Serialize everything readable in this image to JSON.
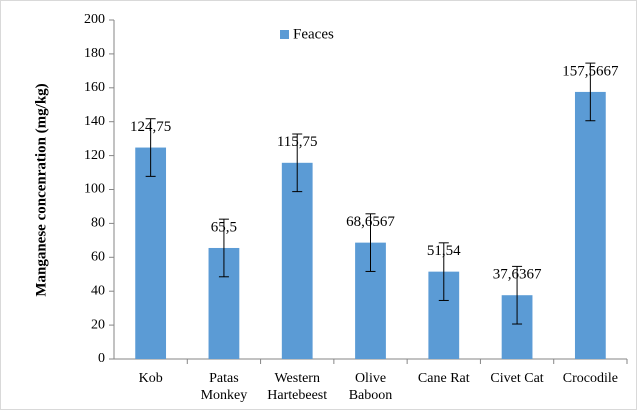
{
  "chart_data": {
    "type": "bar",
    "y_label": "Manganese concenration (mg/kg)",
    "categories": [
      [
        "Kob"
      ],
      [
        "Patas",
        "Monkey"
      ],
      [
        "Western",
        "Hartebeest"
      ],
      [
        "Olive",
        "Baboon"
      ],
      [
        "Cane Rat"
      ],
      [
        "Civet Cat"
      ],
      [
        "Crocodile"
      ]
    ],
    "series": [
      {
        "name": "Feaces",
        "color": "#5b9bd5",
        "values": [
          124.75,
          65.5,
          115.75,
          68.6567,
          51.54,
          37.6367,
          157.5667
        ],
        "value_labels": [
          "124,75",
          "65,5",
          "115,75",
          "68,6567",
          "51,54",
          "37,6367",
          "157,5667"
        ],
        "errors": [
          17,
          17,
          17,
          17,
          17,
          17,
          17
        ]
      }
    ],
    "ylim": [
      0,
      200
    ],
    "yticks": [
      0,
      20,
      40,
      60,
      80,
      100,
      120,
      140,
      160,
      180,
      200
    ],
    "legend": "top"
  }
}
